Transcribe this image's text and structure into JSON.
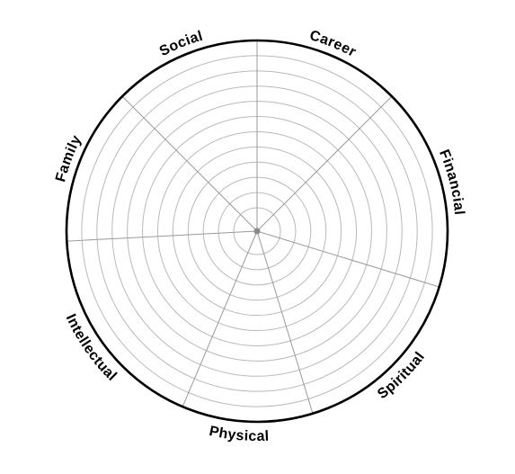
{
  "wheel": {
    "ring_count": 12,
    "colors": {
      "outline": "#000000",
      "rings": "#b9b9b9",
      "spokes": "#9a9a9a",
      "hub": "#8a8a8a"
    },
    "segments": [
      {
        "label": "Career"
      },
      {
        "label": "Financial"
      },
      {
        "label": "Spiritual"
      },
      {
        "label": "Physical"
      },
      {
        "label": "Intellectual"
      },
      {
        "label": "Family"
      },
      {
        "label": "Social"
      }
    ]
  }
}
